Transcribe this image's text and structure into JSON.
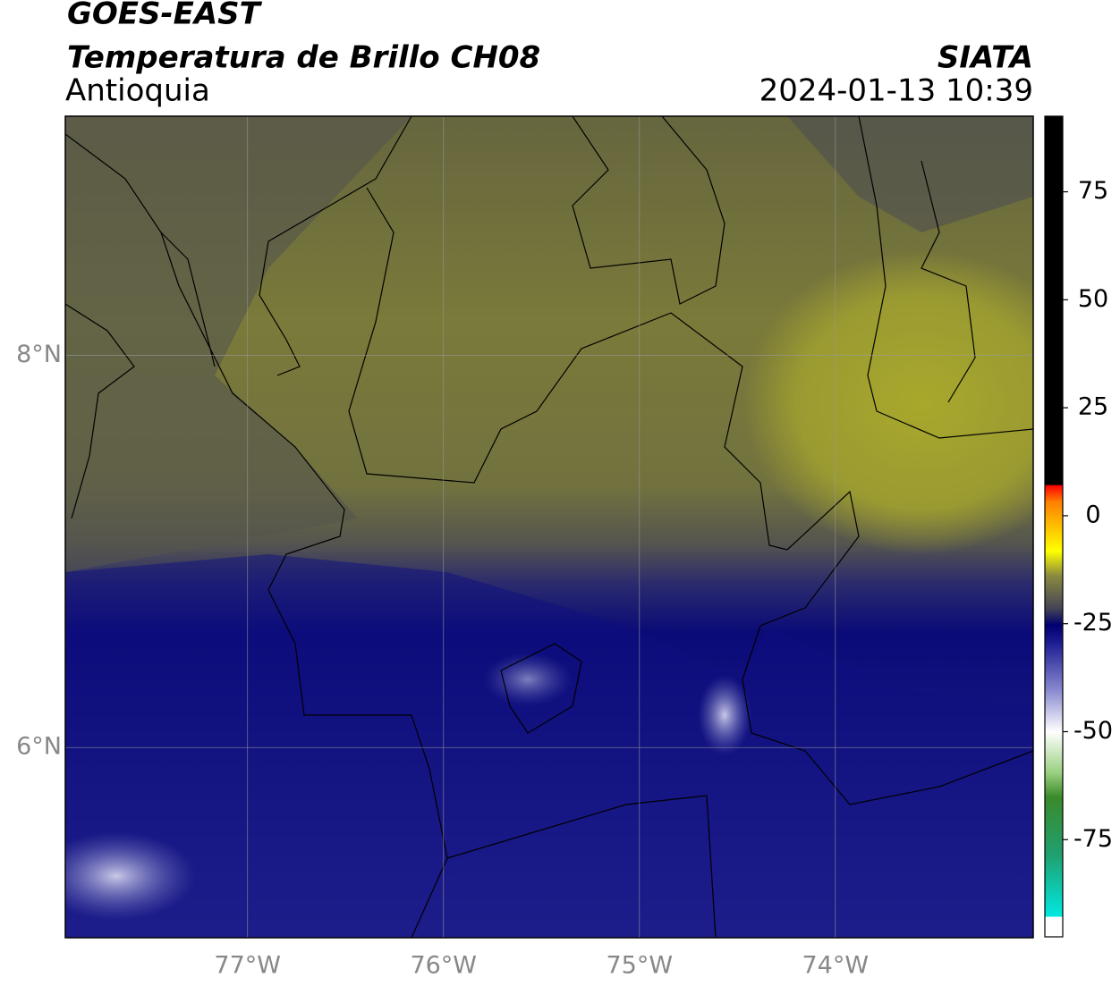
{
  "header": {
    "line1": "GOES-EAST",
    "title": "Temperatura de Brillo CH08",
    "region": "Antioquia",
    "source": "SIATA",
    "datetime": "2024-01-13 10:39"
  },
  "map": {
    "xlim": [
      -77.93,
      -72.99
    ],
    "ylim": [
      5.03,
      9.22
    ],
    "xticks": [
      {
        "value": -77,
        "label": "77°W"
      },
      {
        "value": -76,
        "label": "76°W"
      },
      {
        "value": -75,
        "label": "75°W"
      },
      {
        "value": -74,
        "label": "74°W"
      }
    ],
    "yticks": [
      {
        "value": 8,
        "label": "8°N"
      },
      {
        "value": 6,
        "label": "6°N"
      }
    ]
  },
  "colorbar": {
    "lim": [
      -97.5,
      92.5
    ],
    "ticks": [
      75,
      50,
      25,
      0,
      -25,
      -50,
      -75
    ]
  }
}
